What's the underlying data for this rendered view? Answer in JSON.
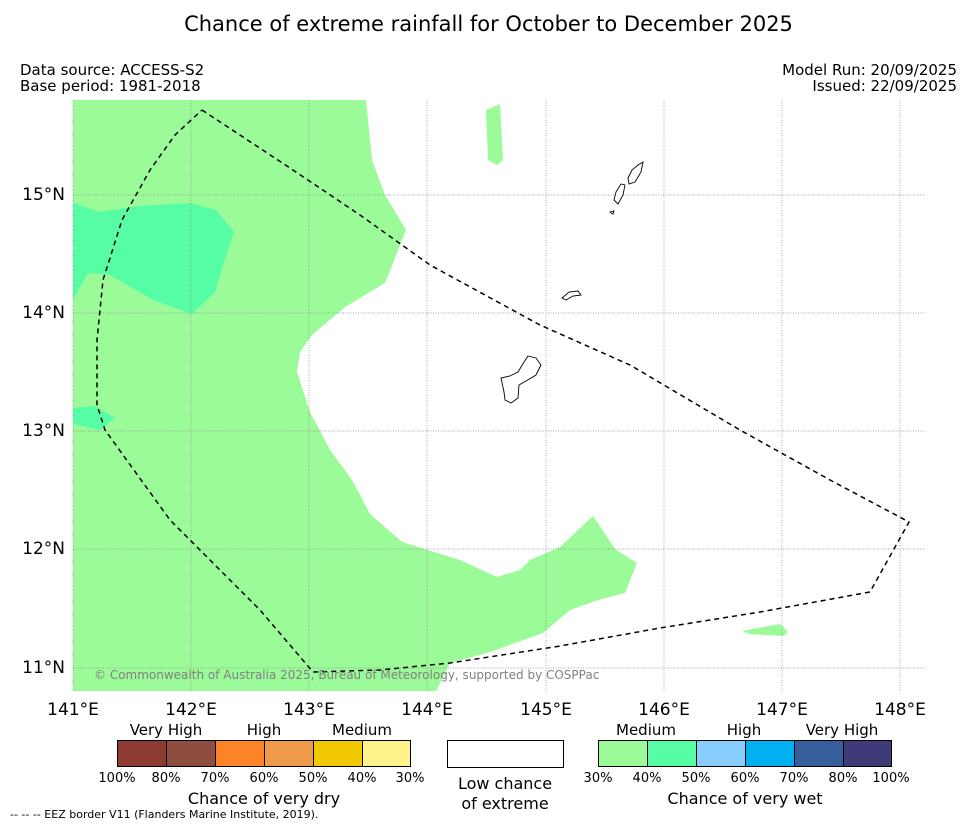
{
  "title": "Chance of extreme rainfall for October to December 2025",
  "data_source": "Data source: ACCESS-S2",
  "base_period": "Base period: 1981-2018",
  "model_run": "Model Run: 20/09/2025",
  "issued": "Issued: 22/09/2025",
  "copyright": "© Commonwealth of Australia 2025, Bureau of Meteorology, supported by COSPPac",
  "footnote": "--  --  -- EEZ border V11 (Flanders Marine Institute, 2019).",
  "map": {
    "lon_ticks": [
      "141°E",
      "142°E",
      "143°E",
      "144°E",
      "145°E",
      "146°E",
      "147°E",
      "148°E"
    ],
    "lat_ticks": [
      "15°N",
      "14°N",
      "13°N",
      "12°N",
      "11°N"
    ],
    "lon_range": [
      141.0,
      148.2
    ],
    "lat_range": [
      10.8,
      15.8
    ],
    "colors": {
      "wet_medium": "#9bfb99",
      "wet_medium_high": "#56fda5",
      "eez_line": "#000000",
      "grid": "#888888"
    }
  },
  "legend": {
    "dry": {
      "title": "Chance of very dry",
      "categories": [
        "Very High",
        "High",
        "Medium"
      ],
      "percent_labels": [
        "100%",
        "80%",
        "70%",
        "60%",
        "50%",
        "40%",
        "30%"
      ],
      "colors": [
        "#8e3b34",
        "#8d4d3f",
        "#fe8327",
        "#ee9a4a",
        "#f2c800",
        "#fff38c"
      ]
    },
    "low": {
      "line1": "Low chance",
      "line2": "of extreme"
    },
    "wet": {
      "title": "Chance of very wet",
      "categories": [
        "Medium",
        "High",
        "Very High"
      ],
      "percent_labels": [
        "30%",
        "40%",
        "50%",
        "60%",
        "70%",
        "80%",
        "100%"
      ],
      "colors": [
        "#9bfb99",
        "#56fda5",
        "#87cdfd",
        "#00b0f0",
        "#365e9c",
        "#3f3a78"
      ]
    }
  }
}
